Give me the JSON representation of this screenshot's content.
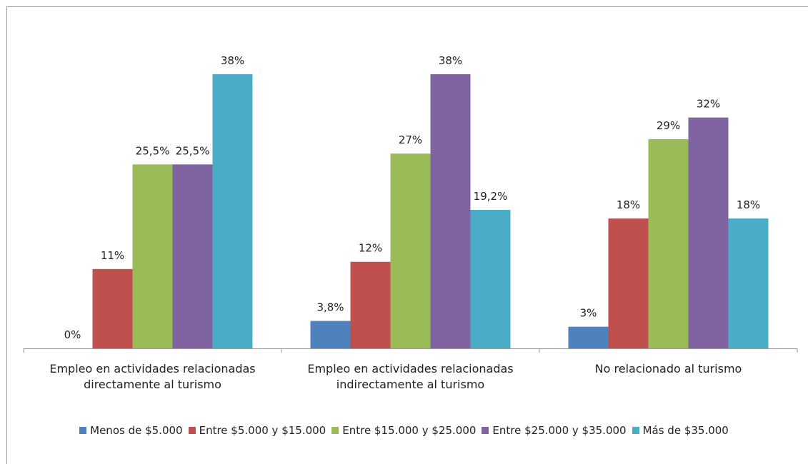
{
  "chart_data": {
    "type": "bar",
    "categories": [
      "Empleo en actividades relacionadas directamente al turismo",
      "Empleo en actividades relacionadas indirectamente al turismo",
      "No relacionado al turismo"
    ],
    "series": [
      {
        "name": "Menos de $5.000",
        "color": "#4f81bd",
        "values": [
          0,
          3.8,
          3
        ],
        "value_labels": [
          "0%",
          "3,8%",
          "3%"
        ]
      },
      {
        "name": "Entre $5.000 y $15.000",
        "color": "#c0504d",
        "values": [
          11,
          12,
          18
        ],
        "value_labels": [
          "11%",
          "12%",
          "18%"
        ]
      },
      {
        "name": "Entre $15.000 y $25.000",
        "color": "#9bbb59",
        "values": [
          25.5,
          27,
          29
        ],
        "value_labels": [
          "25,5%",
          "27%",
          "29%"
        ]
      },
      {
        "name": "Entre $25.000 y $35.000",
        "color": "#8064a2",
        "values": [
          25.5,
          38,
          32
        ],
        "value_labels": [
          "25,5%",
          "38%",
          "32%"
        ]
      },
      {
        "name": "Más de $35.000",
        "color": "#4bacc6",
        "values": [
          38,
          19.2,
          18
        ],
        "value_labels": [
          "38%",
          "19,2%",
          "18%"
        ]
      }
    ],
    "legend": "bottom"
  }
}
